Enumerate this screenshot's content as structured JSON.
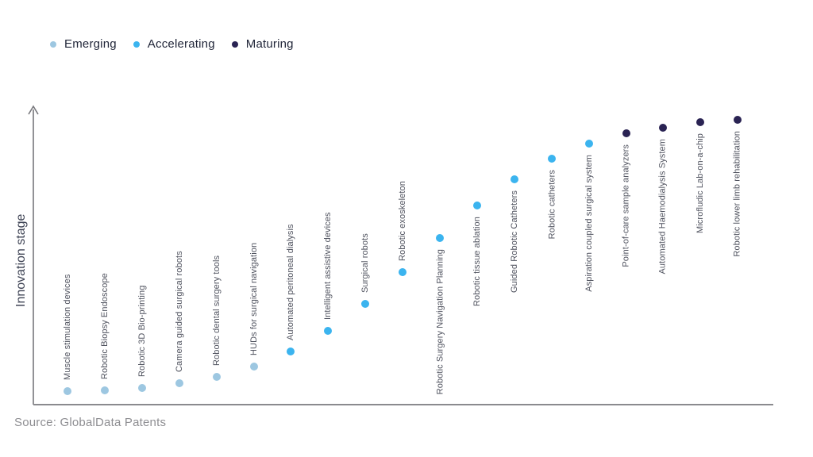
{
  "source": "Source: GlobalData Patents",
  "stage_colors": {
    "Emerging": "#9dc7e1",
    "Accelerating": "#3bb4ef",
    "Maturing": "#2a2353"
  },
  "legend": {
    "items": [
      {
        "label": "Emerging",
        "color": "#9dc7e1"
      },
      {
        "label": "Accelerating",
        "color": "#3bb4ef"
      },
      {
        "label": "Maturing",
        "color": "#2a2353"
      }
    ]
  },
  "chart_data": {
    "type": "scatter",
    "title": "",
    "xlabel": "",
    "ylabel": "Innovation stage",
    "legend_position": "top-left",
    "grid": false,
    "y_axis": {
      "style": "arrow",
      "ticks": "none",
      "meaning": "relative innovation stage height (px above baseline)"
    },
    "legend_entries": [
      "Emerging",
      "Accelerating",
      "Maturing"
    ],
    "points": [
      {
        "label": "Muscle stimulation devices",
        "stage": "Emerging",
        "value": 17
      },
      {
        "label": "Robotic Biopsy Endoscope",
        "stage": "Emerging",
        "value": 18
      },
      {
        "label": "Robotic 3D Bio-printing",
        "stage": "Emerging",
        "value": 21
      },
      {
        "label": "Camera guided surgical robots",
        "stage": "Emerging",
        "value": 27
      },
      {
        "label": "Robotic dental surgery tools",
        "stage": "Emerging",
        "value": 35
      },
      {
        "label": "HUDs for surgical navigation",
        "stage": "Emerging",
        "value": 48
      },
      {
        "label": "Automated peritoneal dialysis",
        "stage": "Accelerating",
        "value": 67
      },
      {
        "label": "Intelligent assistive devices",
        "stage": "Accelerating",
        "value": 93
      },
      {
        "label": "Surgical robots",
        "stage": "Accelerating",
        "value": 127
      },
      {
        "label": "Robotic exoskeleton",
        "stage": "Accelerating",
        "value": 167
      },
      {
        "label": "Robotic Surgery Navigation Planning",
        "stage": "Accelerating",
        "value": 210
      },
      {
        "label": "Robotic tissue ablation",
        "stage": "Accelerating",
        "value": 251
      },
      {
        "label": "Guided Robotic Catheters",
        "stage": "Accelerating",
        "value": 284
      },
      {
        "label": "Robotic catheters",
        "stage": "Accelerating",
        "value": 310
      },
      {
        "label": "Aspiration coupled surgical system",
        "stage": "Accelerating",
        "value": 329
      },
      {
        "label": "Point-of-care sample analyzers",
        "stage": "Maturing",
        "value": 342
      },
      {
        "label": "Automated Haemodialysis System",
        "stage": "Maturing",
        "value": 349
      },
      {
        "label": "Microfludic Lab-on-a-chip",
        "stage": "Maturing",
        "value": 356
      },
      {
        "label": "Robotic lower limb rehabilitation",
        "stage": "Maturing",
        "value": 359
      }
    ]
  }
}
